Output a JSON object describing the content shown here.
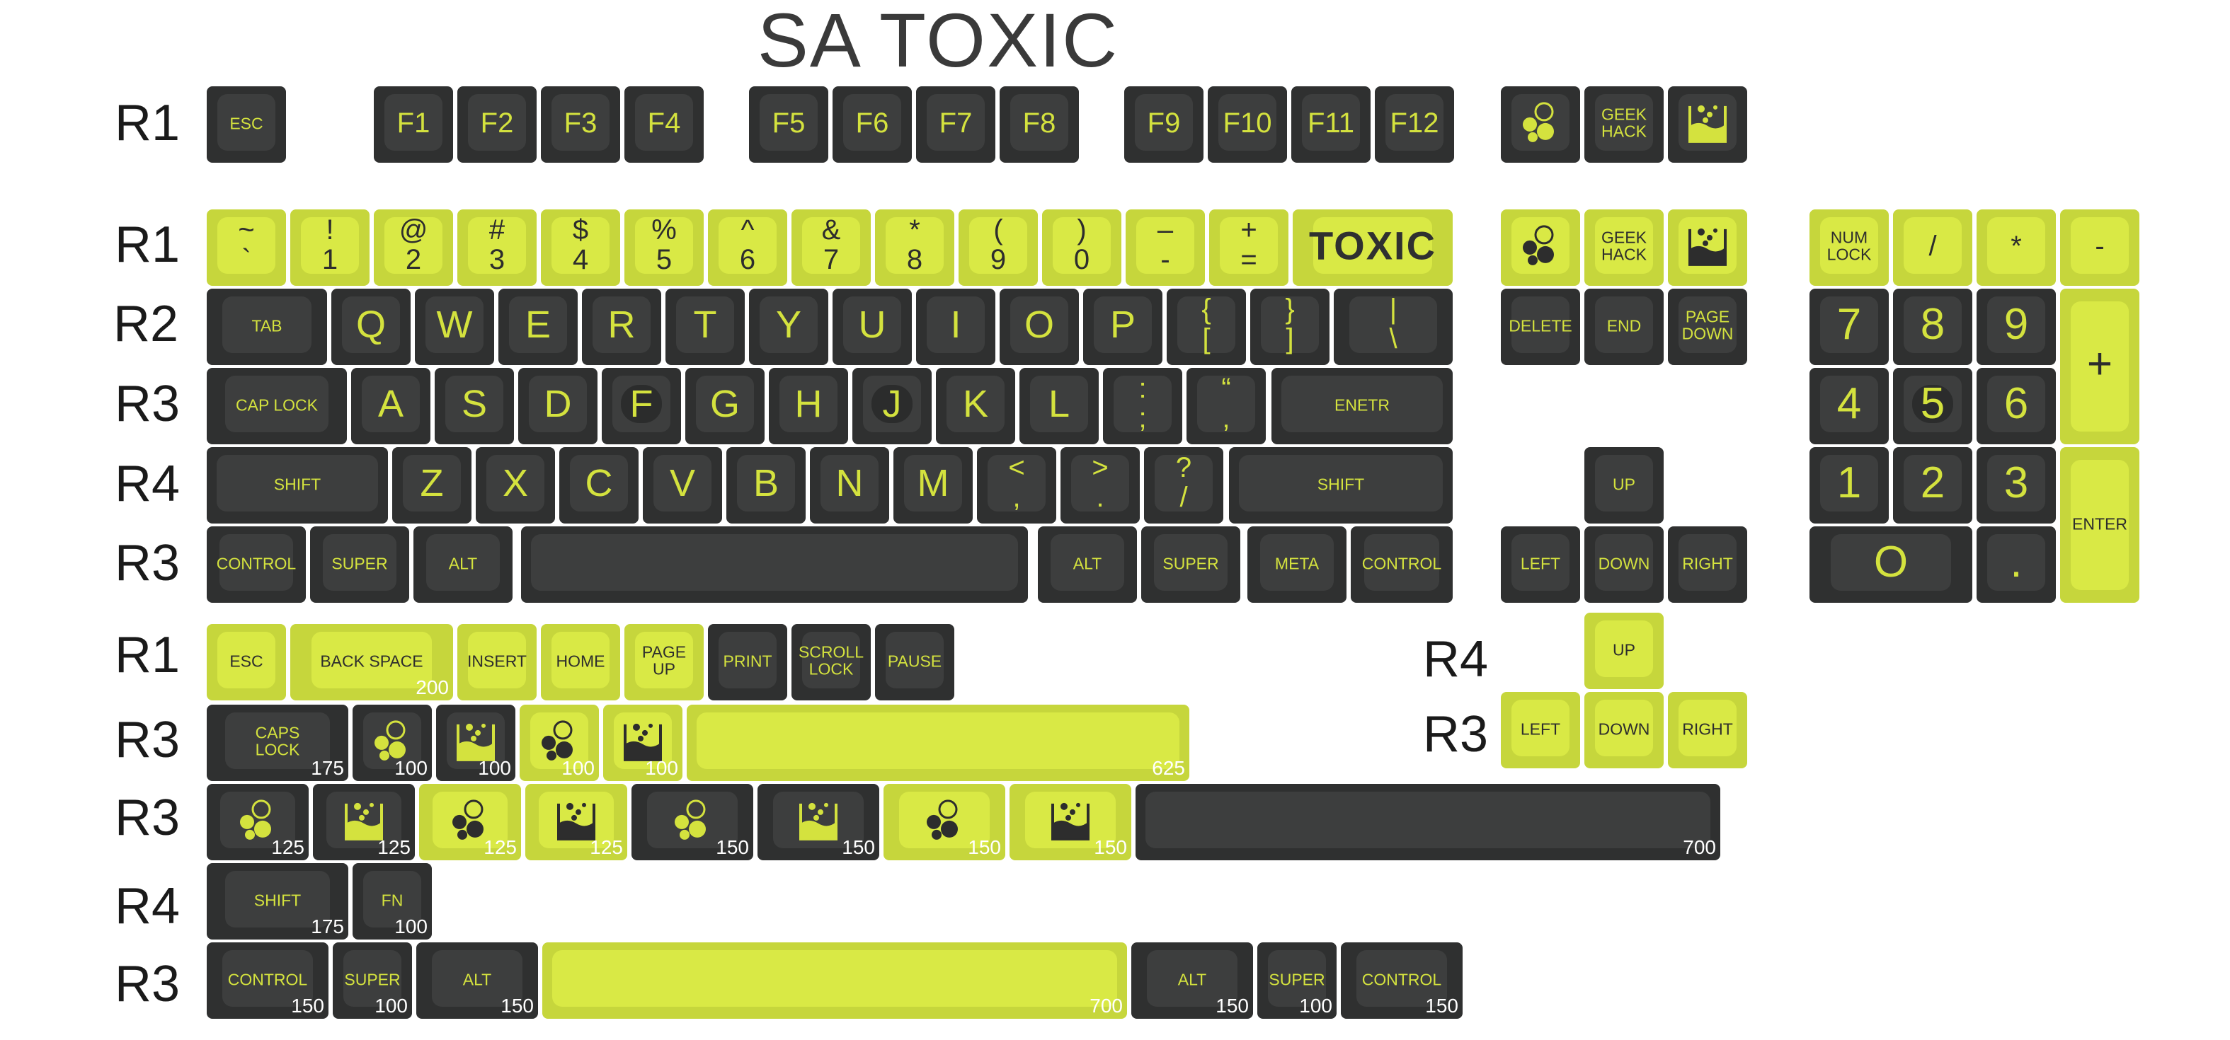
{
  "title": "SA TOXIC",
  "colors": {
    "dark_key": "#2f3030",
    "dark_top": "#3d3e3e",
    "lime_key": "#c6d63c",
    "lime_top": "#d9e945",
    "legend_lime": "#d4e23e",
    "legend_dark": "#2d2d2d",
    "size_text": "#ffffff"
  },
  "row_labels": [
    "R1",
    "R1",
    "R2",
    "R3",
    "R4",
    "R3",
    "R1",
    "R3",
    "R3",
    "R4",
    "R3",
    "R4",
    "R3"
  ],
  "base_kit": {
    "function_row": [
      {
        "id": "esc",
        "legend": "ESC",
        "color": "dark",
        "icon": null
      },
      {
        "id": "f1",
        "legend": "F1",
        "color": "dark",
        "icon": null
      },
      {
        "id": "f2",
        "legend": "F2",
        "color": "dark",
        "icon": null
      },
      {
        "id": "f3",
        "legend": "F3",
        "color": "dark",
        "icon": null
      },
      {
        "id": "f4",
        "legend": "F4",
        "color": "dark",
        "icon": null
      },
      {
        "id": "f5",
        "legend": "F5",
        "color": "dark",
        "icon": null
      },
      {
        "id": "f6",
        "legend": "F6",
        "color": "dark",
        "icon": null
      },
      {
        "id": "f7",
        "legend": "F7",
        "color": "dark",
        "icon": null
      },
      {
        "id": "f8",
        "legend": "F8",
        "color": "dark",
        "icon": null
      },
      {
        "id": "f9",
        "legend": "F9",
        "color": "dark",
        "icon": null
      },
      {
        "id": "f10",
        "legend": "F10",
        "color": "dark",
        "icon": null
      },
      {
        "id": "f11",
        "legend": "F11",
        "color": "dark",
        "icon": null
      },
      {
        "id": "f12",
        "legend": "F12",
        "color": "dark",
        "icon": null
      },
      {
        "id": "nav-bubbles",
        "legend": "",
        "color": "dark",
        "icon": "bubbles-icon"
      },
      {
        "id": "geekhack",
        "legend": "GEEK\nHACK",
        "color": "dark",
        "icon": null
      },
      {
        "id": "nav-beaker",
        "legend": "",
        "color": "dark",
        "icon": "beaker-icon"
      }
    ],
    "number_row": [
      {
        "id": "tilde",
        "legend": "~\n`",
        "color": "lime"
      },
      {
        "id": "1",
        "legend": "!\n1",
        "color": "lime"
      },
      {
        "id": "2",
        "legend": "@\n2",
        "color": "lime"
      },
      {
        "id": "3",
        "legend": "#\n3",
        "color": "lime"
      },
      {
        "id": "4",
        "legend": "$\n4",
        "color": "lime"
      },
      {
        "id": "5",
        "legend": "%\n5",
        "color": "lime"
      },
      {
        "id": "6",
        "legend": "^\n6",
        "color": "lime"
      },
      {
        "id": "7",
        "legend": "&\n7",
        "color": "lime"
      },
      {
        "id": "8",
        "legend": "*\n8",
        "color": "lime"
      },
      {
        "id": "9",
        "legend": "(\n9",
        "color": "lime"
      },
      {
        "id": "0",
        "legend": ")\n0",
        "color": "lime"
      },
      {
        "id": "minus",
        "legend": "–\n-",
        "color": "lime"
      },
      {
        "id": "equal",
        "legend": "+\n=",
        "color": "lime"
      },
      {
        "id": "toxic-backspace",
        "legend": "TOXIC",
        "color": "lime"
      }
    ],
    "nav_top": [
      {
        "id": "nav2-bubbles",
        "legend": "",
        "icon": "bubbles-icon"
      },
      {
        "id": "nav2-geekhack",
        "legend": "GEEK\nHACK",
        "icon": null
      },
      {
        "id": "nav2-beaker",
        "legend": "",
        "icon": "beaker-icon"
      }
    ],
    "nav_mid": [
      "DELETE",
      "END",
      "PAGE\nDOWN"
    ],
    "arrows": {
      "up": "UP",
      "left": "LEFT",
      "down": "DOWN",
      "right": "RIGHT"
    },
    "qwerty_row": [
      "TAB",
      "Q",
      "W",
      "E",
      "R",
      "T",
      "Y",
      "U",
      "I",
      "O",
      "P",
      "{\n[",
      "}\n]",
      "|\n\\"
    ],
    "home_row": [
      "CAP LOCK",
      "A",
      "S",
      "D",
      "F",
      "G",
      "H",
      "J",
      "K",
      "L",
      ":\n;",
      "“\n‚",
      "ENETR"
    ],
    "shift_row": [
      "SHIFT",
      "Z",
      "X",
      "C",
      "V",
      "B",
      "N",
      "M",
      "<\n,",
      ">\n.",
      "?\n/",
      "SHIFT"
    ],
    "bottom_row": [
      "CONTROL",
      "SUPER",
      "ALT",
      "",
      "ALT",
      "SUPER",
      "META",
      "CONTROL"
    ],
    "numpad": {
      "top": [
        "NUM\nLOCK",
        "/",
        "*",
        "-"
      ],
      "row1": [
        "7",
        "8",
        "9"
      ],
      "plus": "+",
      "row2": [
        "4",
        "5",
        "6"
      ],
      "row3": [
        "1",
        "2",
        "3"
      ],
      "enter": "ENTER",
      "zero": "O",
      "dot": "."
    }
  },
  "extras": {
    "r1_row": [
      {
        "legend": "ESC",
        "size": "",
        "color": "lime"
      },
      {
        "legend": "BACK SPACE",
        "size": "200",
        "color": "lime"
      },
      {
        "legend": "INSERT",
        "size": "",
        "color": "lime"
      },
      {
        "legend": "HOME",
        "size": "",
        "color": "lime"
      },
      {
        "legend": "PAGE\nUP",
        "size": "",
        "color": "lime"
      },
      {
        "legend": "PRINT",
        "size": "",
        "color": "dark"
      },
      {
        "legend": "SCROLL\nLOCK",
        "size": "",
        "color": "dark"
      },
      {
        "legend": "PAUSE",
        "size": "",
        "color": "dark"
      }
    ],
    "r3_row_a": [
      {
        "legend": "CAPS\nLOCK",
        "size": "175",
        "color": "dark",
        "icon": null
      },
      {
        "legend": "",
        "size": "100",
        "color": "dark",
        "icon": "bubbles-icon"
      },
      {
        "legend": "",
        "size": "100",
        "color": "dark",
        "icon": "beaker-icon"
      },
      {
        "legend": "",
        "size": "100",
        "color": "lime",
        "icon": "bubbles-icon"
      },
      {
        "legend": "",
        "size": "100",
        "color": "lime",
        "icon": "beaker-icon"
      },
      {
        "legend": "",
        "size": "625",
        "color": "lime",
        "icon": null
      }
    ],
    "r3_row_b": [
      {
        "legend": "",
        "size": "125",
        "color": "dark",
        "icon": "bubbles-icon"
      },
      {
        "legend": "",
        "size": "125",
        "color": "dark",
        "icon": "beaker-icon"
      },
      {
        "legend": "",
        "size": "125",
        "color": "lime",
        "icon": "bubbles-icon"
      },
      {
        "legend": "",
        "size": "125",
        "color": "lime",
        "icon": "beaker-icon"
      },
      {
        "legend": "",
        "size": "150",
        "color": "dark",
        "icon": "bubbles-icon"
      },
      {
        "legend": "",
        "size": "150",
        "color": "dark",
        "icon": "beaker-icon"
      },
      {
        "legend": "",
        "size": "150",
        "color": "lime",
        "icon": "bubbles-icon"
      },
      {
        "legend": "",
        "size": "150",
        "color": "lime",
        "icon": "beaker-icon"
      },
      {
        "legend": "",
        "size": "700",
        "color": "dark",
        "icon": null
      }
    ],
    "r4_row": [
      {
        "legend": "SHIFT",
        "size": "175",
        "color": "dark"
      },
      {
        "legend": "FN",
        "size": "100",
        "color": "dark"
      }
    ],
    "r3_bottom": [
      {
        "legend": "CONTROL",
        "size": "150",
        "color": "dark"
      },
      {
        "legend": "SUPER",
        "size": "100",
        "color": "dark"
      },
      {
        "legend": "ALT",
        "size": "150",
        "color": "dark"
      },
      {
        "legend": "",
        "size": "700",
        "color": "lime"
      },
      {
        "legend": "ALT",
        "size": "150",
        "color": "dark"
      },
      {
        "legend": "SUPER",
        "size": "100",
        "color": "dark"
      },
      {
        "legend": "CONTROL",
        "size": "150",
        "color": "dark"
      }
    ],
    "lime_arrows": {
      "up": "UP",
      "left": "LEFT",
      "down": "DOWN",
      "right": "RIGHT"
    }
  }
}
